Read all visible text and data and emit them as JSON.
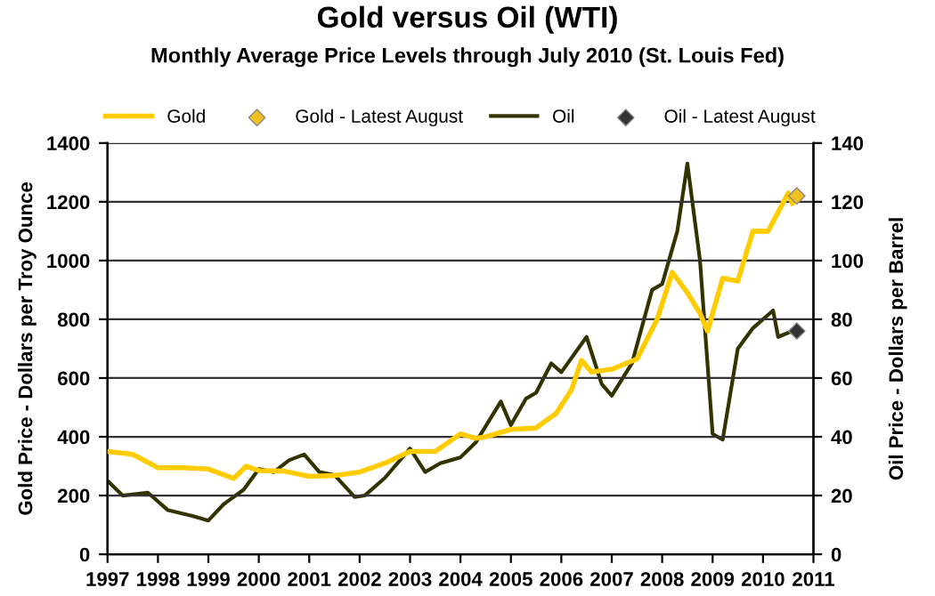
{
  "chart_data": {
    "type": "line",
    "title": "Gold versus Oil (WTI)",
    "subtitle": "Monthly Average Price Levels through July 2010 (St. Louis Fed)",
    "ylabel": "Gold Price - Dollars per Troy Ounce",
    "y2label": "Oil Price - Dollars per Barrel",
    "xlim": [
      1997,
      2011
    ],
    "xticks": [
      1997,
      1998,
      1999,
      2000,
      2001,
      2002,
      2003,
      2004,
      2005,
      2006,
      2007,
      2008,
      2009,
      2010,
      2011
    ],
    "ylim": [
      0,
      1400
    ],
    "yticks": [
      0,
      200,
      400,
      600,
      800,
      1000,
      1200,
      1400
    ],
    "y2lim": [
      0,
      140
    ],
    "y2ticks": [
      0,
      20,
      40,
      60,
      80,
      100,
      120,
      140
    ],
    "grid": "y",
    "legend": "top",
    "series": [
      {
        "name": "Gold",
        "color": "#ffcc00",
        "x": [
          1997,
          1997.5,
          1998,
          1998.5,
          1999,
          1999.5,
          1999.75,
          2000,
          2000.5,
          2001,
          2001.5,
          2002,
          2002.5,
          2003,
          2003.5,
          2004,
          2004.3,
          2004.5,
          2005,
          2005.5,
          2005.9,
          2006.2,
          2006.4,
          2006.6,
          2007,
          2007.5,
          2007.9,
          2008.2,
          2008.5,
          2008.75,
          2008.9,
          2009.2,
          2009.5,
          2009.8,
          2010.1,
          2010.5,
          2010.58
        ],
        "values": [
          350,
          340,
          295,
          295,
          290,
          258,
          300,
          285,
          283,
          265,
          268,
          280,
          310,
          350,
          350,
          410,
          395,
          400,
          425,
          430,
          480,
          560,
          660,
          620,
          630,
          665,
          800,
          960,
          890,
          820,
          760,
          940,
          930,
          1100,
          1100,
          1230,
          1195
        ]
      },
      {
        "name": "Gold - Latest August",
        "type": "scatter",
        "marker": "diamond",
        "color": "#f0c020",
        "x": [
          2010.67
        ],
        "values": [
          1220
        ]
      },
      {
        "name": "Oil",
        "axis": "y2",
        "color": "#333300",
        "x": [
          1997,
          1997.3,
          1997.8,
          1998.2,
          1998.7,
          1999,
          1999.3,
          1999.7,
          2000,
          2000.3,
          2000.6,
          2000.9,
          2001.2,
          2001.5,
          2001.9,
          2002.1,
          2002.5,
          2003,
          2003.3,
          2003.6,
          2004,
          2004.3,
          2004.8,
          2005,
          2005.3,
          2005.5,
          2005.8,
          2006,
          2006.5,
          2006.8,
          2007,
          2007.4,
          2007.8,
          2008,
          2008.3,
          2008.5,
          2008.75,
          2009,
          2009.2,
          2009.5,
          2009.8,
          2010.2,
          2010.3,
          2010.58
        ],
        "values": [
          25,
          20,
          21,
          15,
          13,
          11.5,
          17,
          22,
          29,
          28,
          32,
          34,
          28,
          27,
          19.5,
          20,
          26,
          36,
          28,
          31,
          33,
          38,
          52,
          44,
          53,
          55,
          65,
          62,
          74,
          58,
          54,
          65,
          90,
          92,
          110,
          133,
          100,
          41,
          39,
          70,
          77,
          83,
          74,
          76
        ]
      },
      {
        "name": "Oil - Latest August",
        "type": "scatter",
        "axis": "y2",
        "marker": "diamond",
        "color": "#333333",
        "x": [
          2010.67
        ],
        "values": [
          76
        ]
      }
    ]
  }
}
